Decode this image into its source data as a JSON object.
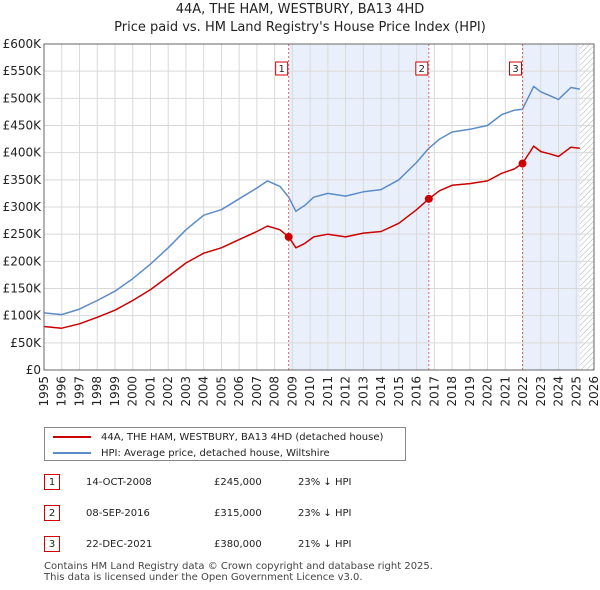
{
  "chart_data": {
    "type": "line",
    "title": "44A, THE HAM, WESTBURY, BA13 4HD",
    "subtitle": "Price paid vs. HM Land Registry's House Price Index (HPI)",
    "xlabel": "",
    "ylabel": "",
    "xlim": [
      1995,
      2026
    ],
    "ylim": [
      0,
      600000
    ],
    "x_ticks": [
      1995,
      1996,
      1997,
      1998,
      1999,
      2000,
      2001,
      2002,
      2003,
      2004,
      2005,
      2006,
      2007,
      2008,
      2009,
      2010,
      2011,
      2012,
      2013,
      2014,
      2015,
      2016,
      2017,
      2018,
      2019,
      2020,
      2021,
      2022,
      2023,
      2024,
      2025,
      2026
    ],
    "y_ticks": [
      {
        "value": 0,
        "label": "£0"
      },
      {
        "value": 50000,
        "label": "£50K"
      },
      {
        "value": 100000,
        "label": "£100K"
      },
      {
        "value": 150000,
        "label": "£150K"
      },
      {
        "value": 200000,
        "label": "£200K"
      },
      {
        "value": 250000,
        "label": "£250K"
      },
      {
        "value": 300000,
        "label": "£300K"
      },
      {
        "value": 350000,
        "label": "£350K"
      },
      {
        "value": 400000,
        "label": "£400K"
      },
      {
        "value": 450000,
        "label": "£450K"
      },
      {
        "value": 500000,
        "label": "£500K"
      },
      {
        "value": 550000,
        "label": "£550K"
      },
      {
        "value": 600000,
        "label": "£600K"
      }
    ],
    "grid": true,
    "series": [
      {
        "name": "44A, THE HAM, WESTBURY, BA13 4HD (detached house)",
        "color": "#cc0000",
        "points": [
          [
            1995.0,
            80000
          ],
          [
            1996.0,
            77000
          ],
          [
            1997.0,
            85000
          ],
          [
            1998.0,
            97000
          ],
          [
            1999.0,
            110000
          ],
          [
            2000.0,
            128000
          ],
          [
            2001.0,
            148000
          ],
          [
            2002.0,
            172000
          ],
          [
            2003.0,
            197000
          ],
          [
            2004.0,
            215000
          ],
          [
            2005.0,
            225000
          ],
          [
            2006.0,
            240000
          ],
          [
            2007.0,
            255000
          ],
          [
            2007.6,
            265000
          ],
          [
            2008.3,
            258000
          ],
          [
            2008.79,
            245000
          ],
          [
            2009.2,
            225000
          ],
          [
            2009.7,
            233000
          ],
          [
            2010.2,
            245000
          ],
          [
            2011.0,
            250000
          ],
          [
            2012.0,
            245000
          ],
          [
            2013.0,
            252000
          ],
          [
            2014.0,
            255000
          ],
          [
            2015.0,
            270000
          ],
          [
            2016.0,
            295000
          ],
          [
            2016.69,
            315000
          ],
          [
            2017.3,
            330000
          ],
          [
            2018.0,
            340000
          ],
          [
            2019.0,
            343000
          ],
          [
            2020.0,
            348000
          ],
          [
            2020.8,
            362000
          ],
          [
            2021.5,
            370000
          ],
          [
            2021.97,
            380000
          ],
          [
            2022.6,
            412000
          ],
          [
            2023.0,
            402000
          ],
          [
            2023.5,
            398000
          ],
          [
            2024.0,
            393000
          ],
          [
            2024.7,
            410000
          ],
          [
            2025.2,
            408000
          ]
        ]
      },
      {
        "name": "HPI: Average price, detached house, Wiltshire",
        "color": "#5b8cc8",
        "points": [
          [
            1995.0,
            105000
          ],
          [
            1996.0,
            102000
          ],
          [
            1997.0,
            112000
          ],
          [
            1998.0,
            128000
          ],
          [
            1999.0,
            145000
          ],
          [
            2000.0,
            168000
          ],
          [
            2001.0,
            195000
          ],
          [
            2002.0,
            225000
          ],
          [
            2003.0,
            258000
          ],
          [
            2004.0,
            285000
          ],
          [
            2005.0,
            295000
          ],
          [
            2006.0,
            315000
          ],
          [
            2007.0,
            335000
          ],
          [
            2007.6,
            348000
          ],
          [
            2008.3,
            338000
          ],
          [
            2008.79,
            318000
          ],
          [
            2009.2,
            292000
          ],
          [
            2009.7,
            303000
          ],
          [
            2010.2,
            318000
          ],
          [
            2011.0,
            325000
          ],
          [
            2012.0,
            320000
          ],
          [
            2013.0,
            328000
          ],
          [
            2014.0,
            332000
          ],
          [
            2015.0,
            350000
          ],
          [
            2016.0,
            382000
          ],
          [
            2016.69,
            408000
          ],
          [
            2017.3,
            425000
          ],
          [
            2018.0,
            438000
          ],
          [
            2019.0,
            443000
          ],
          [
            2020.0,
            450000
          ],
          [
            2020.8,
            470000
          ],
          [
            2021.5,
            478000
          ],
          [
            2021.97,
            480000
          ],
          [
            2022.6,
            522000
          ],
          [
            2023.0,
            512000
          ],
          [
            2023.5,
            505000
          ],
          [
            2024.0,
            498000
          ],
          [
            2024.7,
            520000
          ],
          [
            2025.2,
            517000
          ]
        ]
      }
    ],
    "shaded_ranges": [
      [
        2008.79,
        2016.69
      ],
      [
        2021.97,
        2025.2
      ]
    ],
    "hatched_range": [
      2025.2,
      2026
    ],
    "sale_markers": [
      {
        "id": "1",
        "year": 2008.79,
        "price": 245000
      },
      {
        "id": "2",
        "year": 2016.69,
        "price": 315000
      },
      {
        "id": "3",
        "year": 2021.97,
        "price": 380000
      }
    ]
  },
  "legend": {
    "items": [
      {
        "label": "44A, THE HAM, WESTBURY, BA13 4HD (detached house)",
        "color": "#cc0000"
      },
      {
        "label": "HPI: Average price, detached house, Wiltshire",
        "color": "#5b8cc8"
      }
    ]
  },
  "sales": [
    {
      "id": "1",
      "date": "14-OCT-2008",
      "price": "£245,000",
      "hpi": "23% ↓ HPI"
    },
    {
      "id": "2",
      "date": "08-SEP-2016",
      "price": "£315,000",
      "hpi": "23% ↓ HPI"
    },
    {
      "id": "3",
      "date": "22-DEC-2021",
      "price": "£380,000",
      "hpi": "21% ↓ HPI"
    }
  ],
  "footer": {
    "line1": "Contains HM Land Registry data © Crown copyright and database right 2025.",
    "line2": "This data is licensed under the Open Government Licence v3.0."
  }
}
